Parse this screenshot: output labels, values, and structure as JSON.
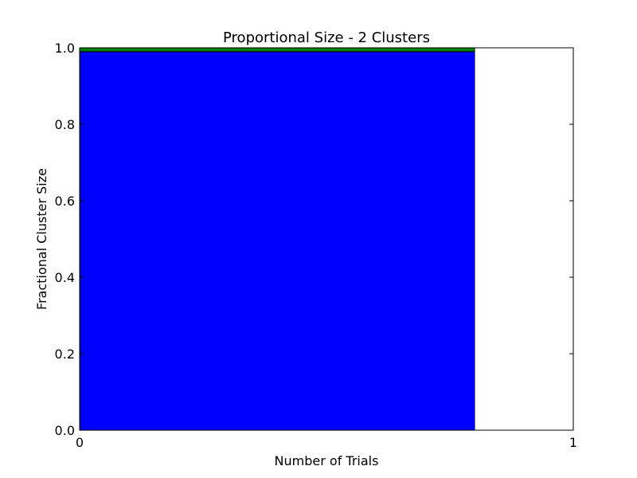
{
  "chart_data": {
    "type": "bar",
    "title": "Proportional Size - 2 Clusters",
    "xlabel": "Number of Trials",
    "ylabel": "Fractional Cluster Size",
    "xlim": [
      0,
      1
    ],
    "ylim": [
      0,
      1
    ],
    "x_ticks": [
      "0",
      "1"
    ],
    "y_ticks": [
      "0.0",
      "0.2",
      "0.4",
      "0.6",
      "0.8",
      "1.0"
    ],
    "grid": false,
    "bar_left": 0,
    "bar_width": 0.8,
    "stacked": true,
    "series": [
      {
        "values": [
          0.99
        ],
        "color": "#0000ff"
      },
      {
        "values": [
          0.01
        ],
        "color": "#007f00"
      }
    ]
  }
}
